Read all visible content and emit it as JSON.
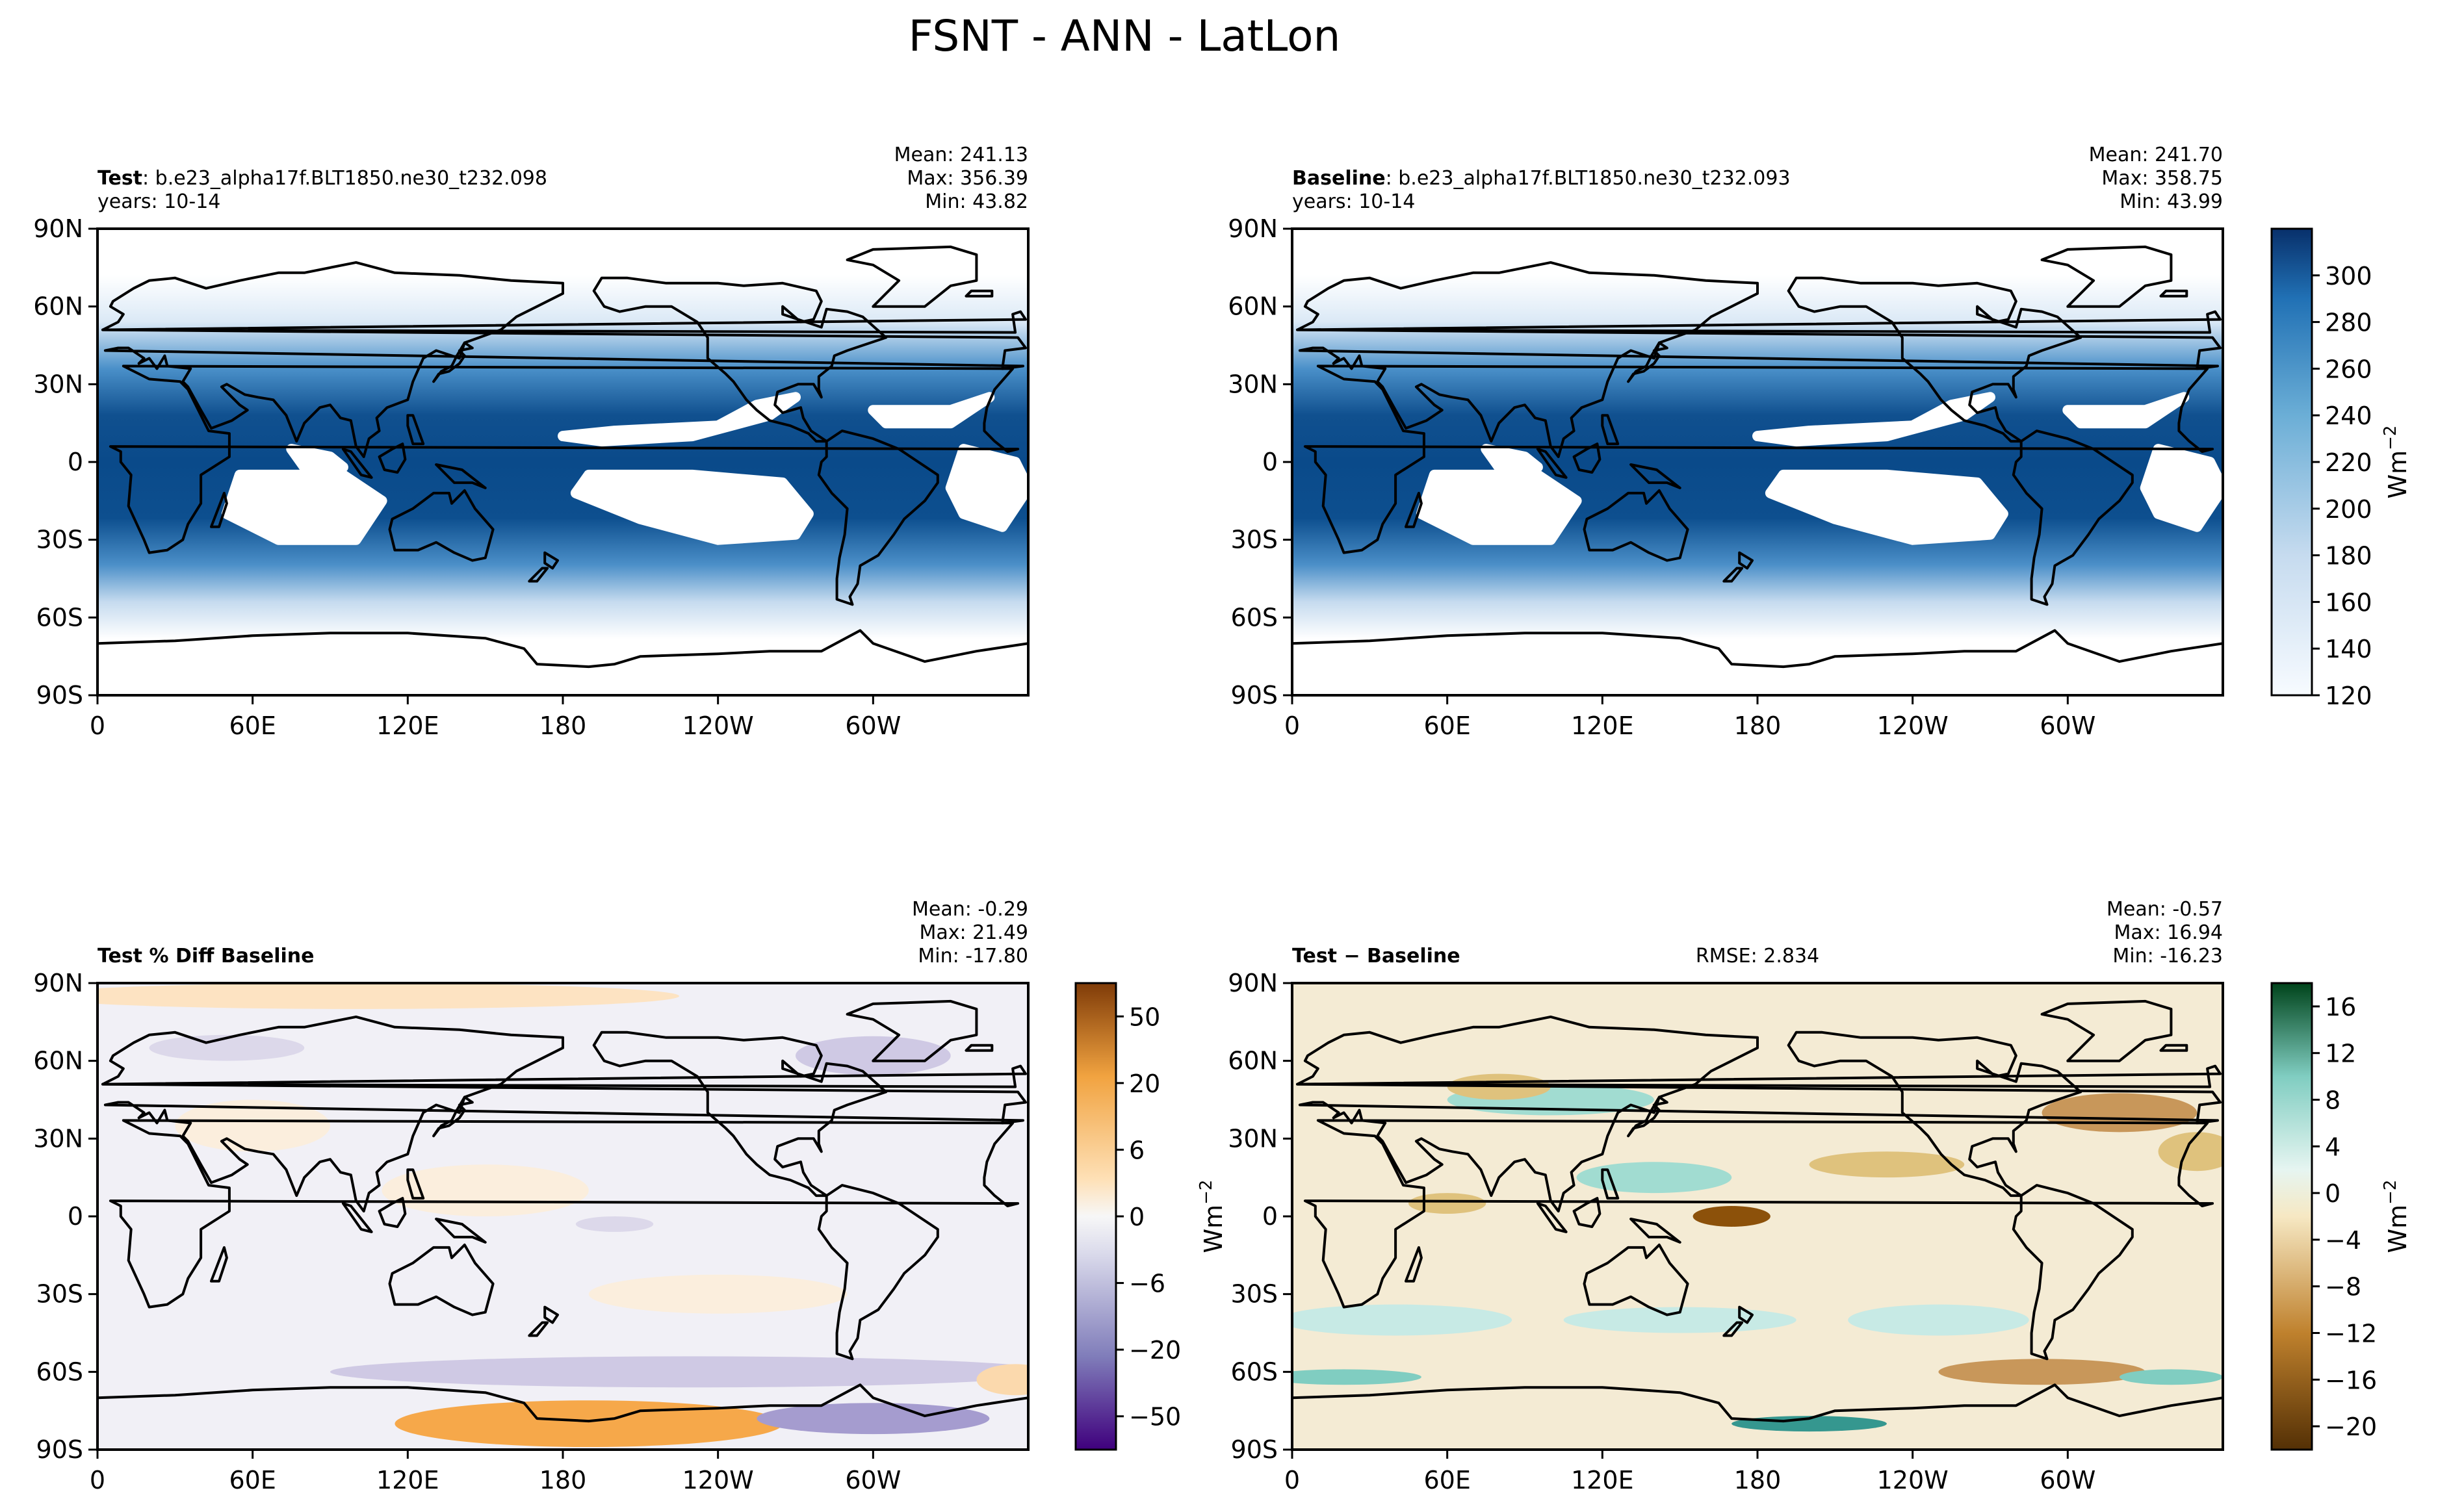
{
  "figure_title": "FSNT - ANN - LatLon",
  "colors": {
    "ocean_blue_low": "#f7fbff",
    "ocean_blue_high": "#08306b",
    "purple_low": "#3f007d",
    "orange_high": "#7f3b08",
    "teal_high": "#00441b",
    "brown_low": "#543005",
    "coast": "#000000"
  },
  "axes": {
    "lat_ticks": [
      "90N",
      "60N",
      "30N",
      "0",
      "30S",
      "60S",
      "90S"
    ],
    "lon_ticks": [
      "0",
      "60E",
      "120E",
      "180",
      "120W",
      "60W"
    ]
  },
  "panels": [
    {
      "id": "test",
      "label_bold": "Test",
      "label_rest": ": b.e23_alpha17f.BLT1850.ne30_t232.098",
      "years": "years: 10-14",
      "stats": [
        "Mean: 241.13",
        "Max: 356.39",
        "Min: 43.82"
      ],
      "rmse": ""
    },
    {
      "id": "baseline",
      "label_bold": "Baseline",
      "label_rest": ": b.e23_alpha17f.BLT1850.ne30_t232.093",
      "years": "years: 10-14",
      "stats": [
        "Mean: 241.70",
        "Max: 358.75",
        "Min: 43.99"
      ],
      "rmse": ""
    },
    {
      "id": "pctdiff",
      "label_bold": "Test % Diff Baseline",
      "label_rest": "",
      "years": "",
      "stats": [
        "Mean: -0.29",
        "Max: 21.49",
        "Min: -17.80"
      ],
      "rmse": ""
    },
    {
      "id": "diff",
      "label_bold": "Test − Baseline",
      "label_rest": "",
      "years": "",
      "stats": [
        "Mean: -0.57",
        "Max: 16.94",
        "Min: -16.23"
      ],
      "rmse": "RMSE: 2.834"
    }
  ],
  "colorbars": [
    {
      "id": "main",
      "ticks": [
        "120",
        "140",
        "160",
        "180",
        "200",
        "220",
        "240",
        "260",
        "280",
        "300"
      ],
      "unit_base": "Wm",
      "unit_exp": "−2"
    },
    {
      "id": "pct",
      "ticks": [
        "−50",
        "−20",
        "−6",
        "0",
        "6",
        "20",
        "50"
      ],
      "unit_base": "Wm",
      "unit_exp": "−2"
    },
    {
      "id": "diff",
      "ticks": [
        "−20",
        "−16",
        "−12",
        "−8",
        "−4",
        "0",
        "4",
        "8",
        "12",
        "16"
      ],
      "unit_base": "Wm",
      "unit_exp": "−2"
    }
  ]
}
